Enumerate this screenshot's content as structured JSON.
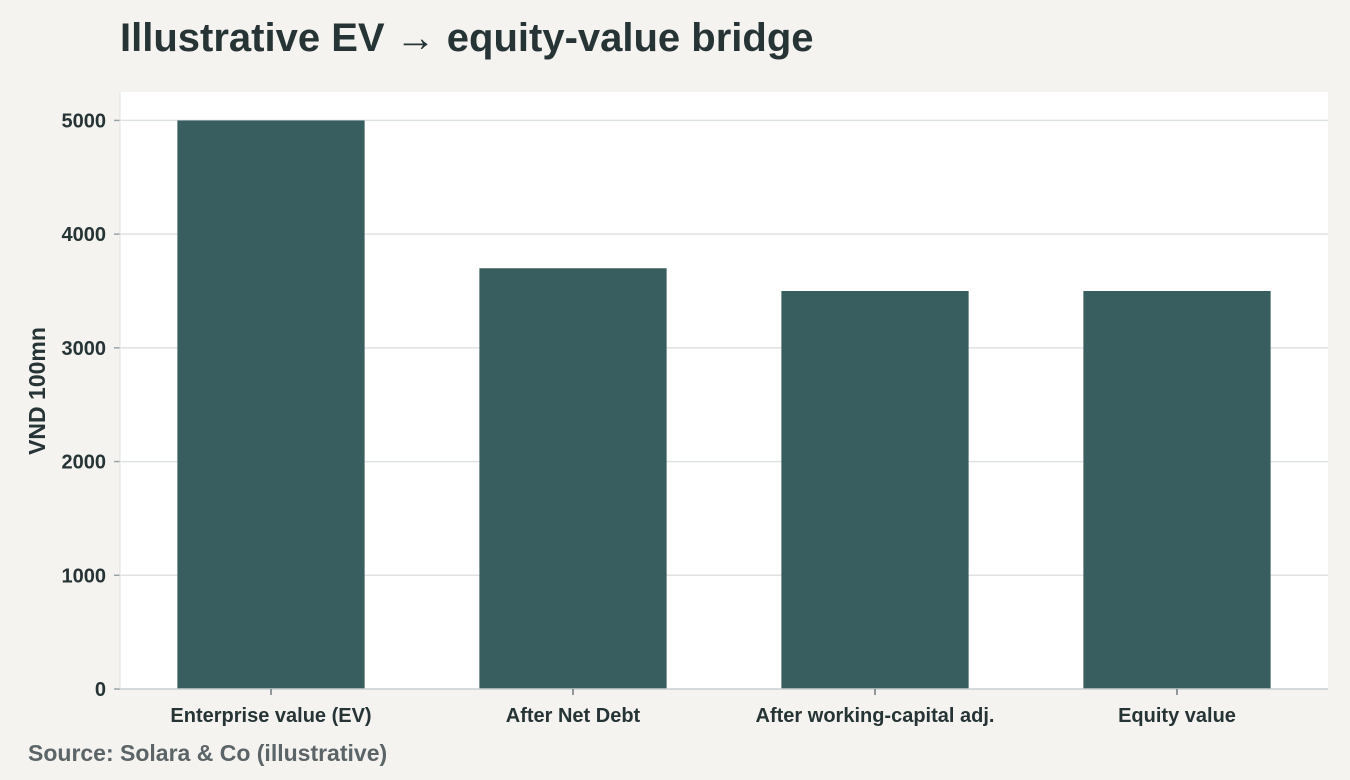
{
  "title": "Illustrative EV → equity-value bridge",
  "source": "Source: Solara & Co (illustrative)",
  "colors": {
    "page_background": "#f4f3ef",
    "plot_background": "#ffffff",
    "bar": "#395e5f",
    "grid": "#dfe2e3",
    "text": "#263436"
  },
  "chart_data": {
    "type": "bar",
    "title": "Illustrative EV → equity-value bridge",
    "xlabel": "",
    "ylabel": "VND 100mn",
    "categories": [
      "Enterprise value (EV)",
      "After Net Debt",
      "After working-capital adj.",
      "Equity value"
    ],
    "values": [
      5000,
      3700,
      3500,
      3500
    ],
    "ylim": [
      0,
      5250
    ],
    "yticks": [
      0,
      1000,
      2000,
      3000,
      4000,
      5000
    ],
    "grid": true,
    "legend": "none"
  }
}
